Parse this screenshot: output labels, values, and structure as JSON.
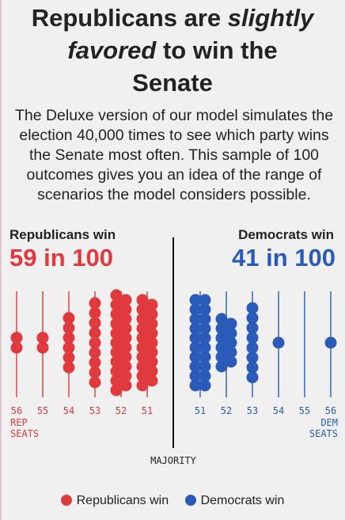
{
  "headline": {
    "part1": "Republicans are ",
    "em1": "slightly",
    "em2": "favored",
    "part2": " to win the",
    "part3": "Senate"
  },
  "intro": "The Deluxe version of our model simulates the election 40,000 times to see which party wins the Senate most often. This sample of 100 outcomes gives you an idea of the range of scenarios the model considers possible.",
  "rep": {
    "label": "Republicans win",
    "count": "59 in 100",
    "color": "#e0393e"
  },
  "dem": {
    "label": "Democrats win",
    "count": "41 in 100",
    "color": "#2a5bb8"
  },
  "majority_label": "MAJORITY",
  "rep_axis_note": [
    "REP",
    "SEATS"
  ],
  "dem_axis_note": [
    "DEM",
    "SEATS"
  ],
  "legend": {
    "rep": "Republicans win",
    "dem": "Democrats win"
  },
  "chart_data": {
    "type": "scatter",
    "description": "Beeswarm of 100 simulated outcomes by number of seats won by the winning party",
    "categories": [
      "56 REP",
      "55 REP",
      "54 REP",
      "53 REP",
      "52 REP",
      "51 REP",
      "51 DEM",
      "52 DEM",
      "53 DEM",
      "54 DEM",
      "55 DEM",
      "56 DEM"
    ],
    "tick_labels": [
      "56",
      "55",
      "54",
      "53",
      "52",
      "51",
      "51",
      "52",
      "53",
      "54",
      "55",
      "56"
    ],
    "series": [
      {
        "name": "Republicans win",
        "color": "#e0393e",
        "counts": [
          2,
          2,
          6,
          9,
          21,
          19,
          0,
          0,
          0,
          0,
          0,
          0
        ]
      },
      {
        "name": "Democrats win",
        "color": "#2a5bb8",
        "counts": [
          0,
          0,
          0,
          0,
          0,
          0,
          20,
          11,
          8,
          1,
          0,
          1
        ]
      }
    ],
    "total_outcomes": 100
  }
}
